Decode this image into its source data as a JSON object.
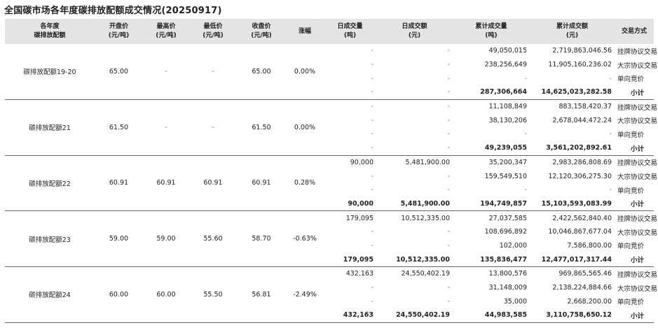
{
  "title": "全国碳市场各年度碳排放配额成交情况(20250917)",
  "headers": {
    "name": [
      "各年度",
      "碳排放配额"
    ],
    "open": [
      "开盘价",
      "(元/吨)"
    ],
    "high": [
      "最高价",
      "(元/吨)"
    ],
    "low": [
      "最低价",
      "(元/吨)"
    ],
    "close": [
      "收盘价",
      "(元/吨)"
    ],
    "change": [
      "涨幅"
    ],
    "day_vol": [
      "日成交量",
      "(吨)"
    ],
    "day_amt": [
      "日成交额",
      "(元)"
    ],
    "cum_vol": [
      "累计成交量",
      "(吨)"
    ],
    "cum_amt": [
      "累计成交额",
      "(元)"
    ],
    "method": [
      "交易方式"
    ]
  },
  "groups": [
    {
      "name": "碳排放配额19-20",
      "open": "65.00",
      "high": "-",
      "low": "-",
      "close": "65.00",
      "change": "0.00%",
      "rows": [
        {
          "day_vol": "-",
          "day_amt": "-",
          "cum_vol": "49,050,015",
          "cum_amt": "2,719,863,046.56",
          "method": "挂牌协议交易"
        },
        {
          "day_vol": "-",
          "day_amt": "-",
          "cum_vol": "238,256,649",
          "cum_amt": "11,905,160,236.02",
          "method": "大宗协议交易"
        },
        {
          "day_vol": "-",
          "day_amt": "-",
          "cum_vol": "-",
          "cum_amt": "-",
          "method": "单向竞价"
        },
        {
          "day_vol": "-",
          "day_amt": "-",
          "cum_vol": "287,306,664",
          "cum_amt": "14,625,023,282.58",
          "method": "小计"
        }
      ]
    },
    {
      "name": "碳排放配额21",
      "open": "61.50",
      "high": "-",
      "low": "-",
      "close": "61.50",
      "change": "0.00%",
      "rows": [
        {
          "day_vol": "-",
          "day_amt": "-",
          "cum_vol": "11,108,849",
          "cum_amt": "883,158,420.37",
          "method": "挂牌协议交易"
        },
        {
          "day_vol": "-",
          "day_amt": "-",
          "cum_vol": "38,130,206",
          "cum_amt": "2,678,044,472.24",
          "method": "大宗协议交易"
        },
        {
          "day_vol": "-",
          "day_amt": "-",
          "cum_vol": "-",
          "cum_amt": "-",
          "method": "单向竞价"
        },
        {
          "day_vol": "-",
          "day_amt": "-",
          "cum_vol": "49,239,055",
          "cum_amt": "3,561,202,892.61",
          "method": "小计"
        }
      ]
    },
    {
      "name": "碳排放配额22",
      "open": "60.91",
      "high": "60.91",
      "low": "60.91",
      "close": "60.91",
      "change": "0.28%",
      "rows": [
        {
          "day_vol": "90,000",
          "day_amt": "5,481,900.00",
          "cum_vol": "35,200,347",
          "cum_amt": "2,983,286,808.69",
          "method": "挂牌协议交易"
        },
        {
          "day_vol": "-",
          "day_amt": "-",
          "cum_vol": "159,549,510",
          "cum_amt": "12,120,306,275.30",
          "method": "大宗协议交易"
        },
        {
          "day_vol": "-",
          "day_amt": "-",
          "cum_vol": "-",
          "cum_amt": "-",
          "method": "单向竞价"
        },
        {
          "day_vol": "90,000",
          "day_amt": "5,481,900.00",
          "cum_vol": "194,749,857",
          "cum_amt": "15,103,593,083.99",
          "method": "小计"
        }
      ]
    },
    {
      "name": "碳排放配额23",
      "open": "59.00",
      "high": "59.00",
      "low": "55.60",
      "close": "58.70",
      "change": "-0.63%",
      "rows": [
        {
          "day_vol": "179,095",
          "day_amt": "10,512,335.00",
          "cum_vol": "27,037,585",
          "cum_amt": "2,422,562,840.40",
          "method": "挂牌协议交易"
        },
        {
          "day_vol": "-",
          "day_amt": "-",
          "cum_vol": "108,696,892",
          "cum_amt": "10,046,867,677.04",
          "method": "大宗协议交易"
        },
        {
          "day_vol": "-",
          "day_amt": "-",
          "cum_vol": "102,000",
          "cum_amt": "7,586,800.00",
          "method": "单向竞价"
        },
        {
          "day_vol": "179,095",
          "day_amt": "10,512,335.00",
          "cum_vol": "135,836,477",
          "cum_amt": "12,477,017,317.44",
          "method": "小计"
        }
      ]
    },
    {
      "name": "碳排放配额24",
      "open": "60.00",
      "high": "60.00",
      "low": "55.50",
      "close": "56.81",
      "change": "-2.49%",
      "rows": [
        {
          "day_vol": "432,163",
          "day_amt": "24,550,402.19",
          "cum_vol": "13,800,576",
          "cum_amt": "969,865,565.46",
          "method": "挂牌协议交易"
        },
        {
          "day_vol": "-",
          "day_amt": "-",
          "cum_vol": "31,148,009",
          "cum_amt": "2,138,224,884.66",
          "method": "大宗协议交易"
        },
        {
          "day_vol": "-",
          "day_amt": "-",
          "cum_vol": "35,000",
          "cum_amt": "2,668,200.00",
          "method": "单向竞价"
        },
        {
          "day_vol": "432,163",
          "day_amt": "24,550,402.19",
          "cum_vol": "44,983,585",
          "cum_amt": "3,110,758,650.12",
          "method": "小计"
        }
      ]
    }
  ]
}
